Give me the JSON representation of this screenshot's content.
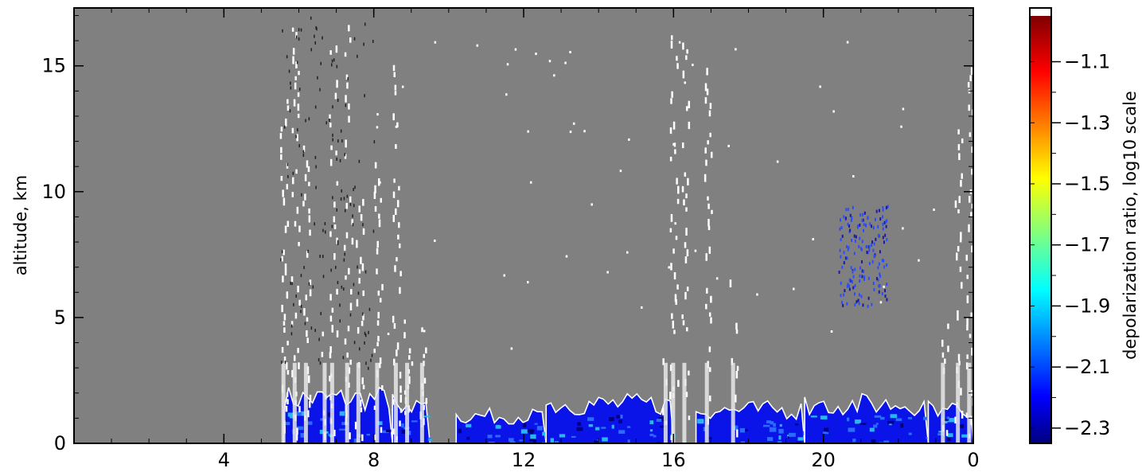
{
  "chart_data": {
    "type": "heatmap",
    "title": "",
    "xlabel": "",
    "ylabel": "altitude, km",
    "x_ticks": [
      {
        "label": "4",
        "hour": 4
      },
      {
        "label": "8",
        "hour": 8
      },
      {
        "label": "12",
        "hour": 12
      },
      {
        "label": "16",
        "hour": 16
      },
      {
        "label": "20",
        "hour": 20
      },
      {
        "label": "0",
        "hour": 24
      }
    ],
    "xlim": [
      0,
      24
    ],
    "y_ticks": [
      0,
      5,
      10,
      15
    ],
    "ylim": [
      0,
      17.3
    ],
    "background_color": "#808080",
    "colorbar": {
      "label": "depolarization ratio, log10 scale",
      "range": [
        -2.35,
        -0.95
      ],
      "ticks": [
        -1.1,
        -1.3,
        -1.5,
        -1.7,
        -1.9,
        -2.1,
        -2.3
      ],
      "tick_labels": [
        "−1.1",
        "−1.3",
        "−1.5",
        "−1.7",
        "−1.9",
        "−2.1",
        "−2.3"
      ],
      "colormap": "jet",
      "over_color": "#ffffff"
    },
    "low_cloud_regions": [
      {
        "x0": 5.6,
        "x1": 8.5,
        "top": 2.3
      },
      {
        "x0": 8.5,
        "x1": 9.5,
        "top": 2.0
      },
      {
        "x0": 10.2,
        "x1": 12.6,
        "top": 1.4
      },
      {
        "x0": 12.6,
        "x1": 16.0,
        "top": 2.0
      },
      {
        "x0": 16.6,
        "x1": 19.5,
        "top": 1.7
      },
      {
        "x0": 19.5,
        "x1": 22.8,
        "top": 2.0
      },
      {
        "x0": 22.8,
        "x1": 24.0,
        "top": 1.8
      }
    ],
    "white_columns": [
      {
        "x": 5.6,
        "y0": 0.0,
        "y1": 13.8
      },
      {
        "x": 5.9,
        "y0": 0.0,
        "y1": 17.2
      },
      {
        "x": 6.2,
        "y0": 0.0,
        "y1": 12.5
      },
      {
        "x": 6.7,
        "y0": 0.0,
        "y1": 4.5
      },
      {
        "x": 6.9,
        "y0": 0.0,
        "y1": 16.5
      },
      {
        "x": 7.3,
        "y0": 0.0,
        "y1": 17.0
      },
      {
        "x": 7.6,
        "y0": 0.0,
        "y1": 9.8
      },
      {
        "x": 8.1,
        "y0": 0.0,
        "y1": 11.5
      },
      {
        "x": 8.6,
        "y0": 0.0,
        "y1": 16.0
      },
      {
        "x": 8.9,
        "y0": 0.0,
        "y1": 5.0
      },
      {
        "x": 9.3,
        "y0": 0.0,
        "y1": 5.0
      },
      {
        "x": 15.8,
        "y0": 0.0,
        "y1": 3.5
      },
      {
        "x": 16.0,
        "y0": 0.0,
        "y1": 16.3
      },
      {
        "x": 16.3,
        "y0": 0.0,
        "y1": 16.0
      },
      {
        "x": 16.9,
        "y0": 0.0,
        "y1": 15.0
      },
      {
        "x": 17.6,
        "y0": 0.0,
        "y1": 8.6
      },
      {
        "x": 23.2,
        "y0": 0.0,
        "y1": 4.8
      },
      {
        "x": 23.6,
        "y0": 0.0,
        "y1": 12.5
      },
      {
        "x": 23.9,
        "y0": 0.0,
        "y1": 15.0
      }
    ],
    "elevated_aerosol": {
      "x0": 20.4,
      "x1": 21.7,
      "y0": 5.5,
      "y1": 9.5
    }
  }
}
